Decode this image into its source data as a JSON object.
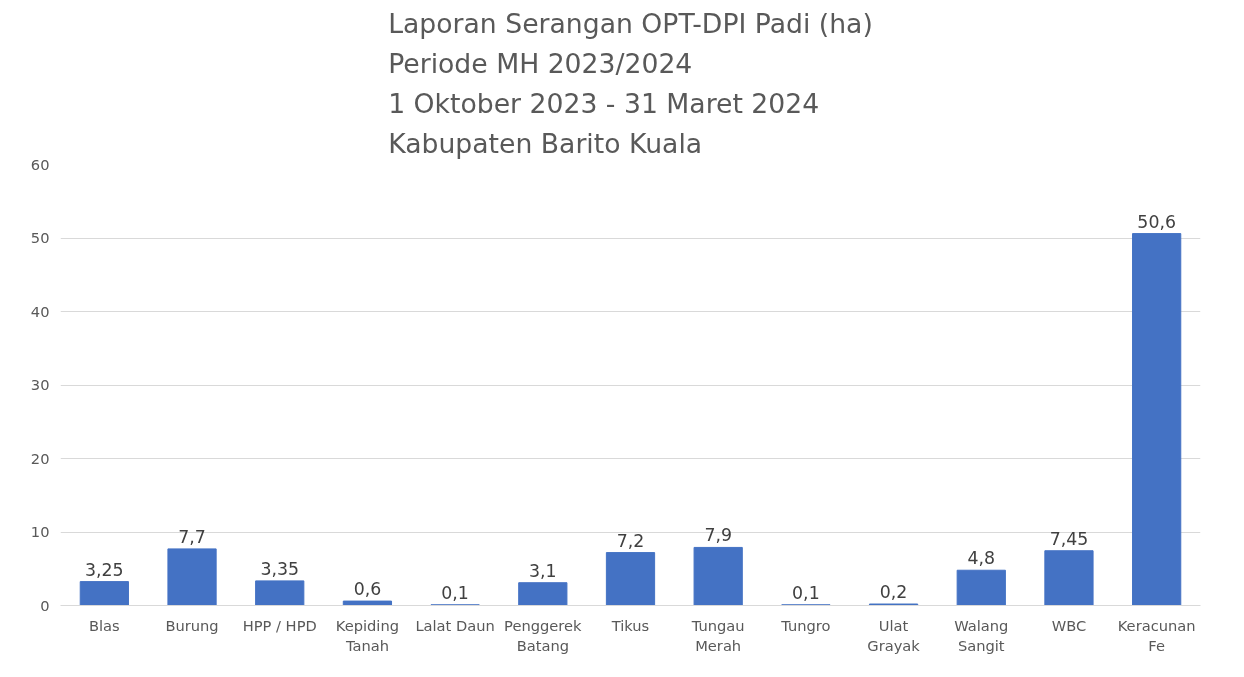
{
  "chart_data": {
    "type": "bar",
    "title": "Laporan Serangan OPT-DPI Padi (ha)\nPeriode MH 2023/2024\n1 Oktober 2023 - 31 Maret 2024\nKabupaten Barito Kuala",
    "categories": [
      "Blas",
      "Burung",
      "HPP / HPD",
      "Kepiding Tanah",
      "Lalat Daun",
      "Penggerek Batang",
      "Tikus",
      "Tungau Merah",
      "Tungro",
      "Ulat Grayak",
      "Walang Sangit",
      "WBC",
      "Keracunan Fe"
    ],
    "values": [
      3.25,
      7.7,
      3.35,
      0.6,
      0.1,
      3.1,
      7.2,
      7.9,
      0.1,
      0.2,
      4.8,
      7.45,
      50.6
    ],
    "value_labels": [
      "3,25",
      "7,7",
      "3,35",
      "0,6",
      "0,1",
      "3,1",
      "7,2",
      "7,9",
      "0,1",
      "0,2",
      "4,8",
      "7,45",
      "50,6"
    ],
    "color": "#4472c4",
    "ylim": [
      0,
      60
    ],
    "yticks": [
      0,
      10,
      20,
      30,
      40,
      50,
      60
    ],
    "grid": "y"
  }
}
